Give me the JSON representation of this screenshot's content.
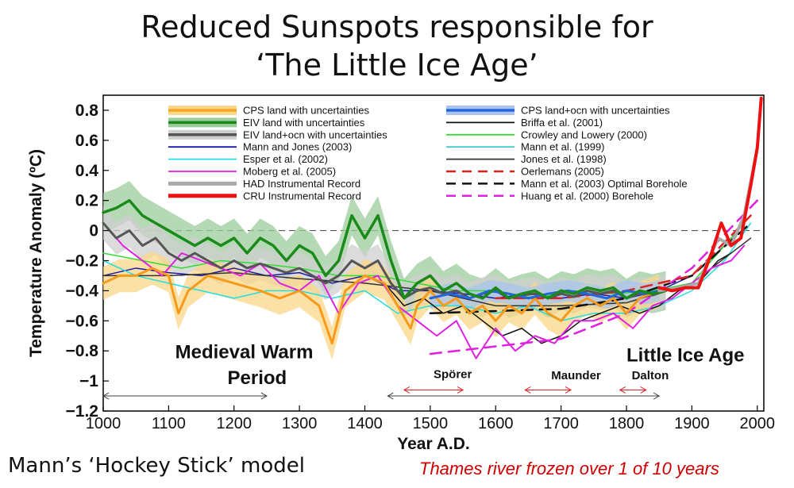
{
  "title_line1": "Reduced Sunspots responsible for",
  "title_line2": "‘The Little Ice Age’",
  "caption_left": "Mann’s ‘Hockey Stick’ model",
  "caption_right": "Thames river frozen over 1 of 10 years",
  "chart_data": {
    "type": "line",
    "xlabel": "Year A.D.",
    "ylabel": "Temperature Anomaly (ºC)",
    "xlim": [
      1000,
      2010
    ],
    "ylim": [
      -1.2,
      0.9
    ],
    "xticks": [
      1000,
      1100,
      1200,
      1300,
      1400,
      1500,
      1600,
      1700,
      1800,
      1900,
      2000
    ],
    "yticks": [
      -1.2,
      -1,
      -0.8,
      -0.6,
      -0.4,
      -0.2,
      0,
      0.2,
      0.4,
      0.6,
      0.8
    ],
    "ytick_labels": [
      "−1.2",
      "−1",
      "−0.8",
      "−0.6",
      "−0.4",
      "−0.2",
      "0",
      "0.2",
      "0.4",
      "0.6",
      "0.8"
    ],
    "grid": false,
    "zero_line": true,
    "legend_placement": "top",
    "legend": [
      {
        "label": "CPS land with uncertainties",
        "color": "#f5a623",
        "style": "band"
      },
      {
        "label": "EIV land with uncertainties",
        "color": "#1a8a1a",
        "style": "band"
      },
      {
        "label": "EIV land+ocn with uncertainties",
        "color": "#555555",
        "style": "band"
      },
      {
        "label": "Mann and Jones (2003)",
        "color": "#1a1aa8",
        "style": "line"
      },
      {
        "label": "Esper et al. (2002)",
        "color": "#22dddd",
        "style": "line"
      },
      {
        "label": "Moberg et al. (2005)",
        "color": "#e020e0",
        "style": "line"
      },
      {
        "label": "HAD Instrumental Record",
        "color": "#aaaaaa",
        "style": "thick"
      },
      {
        "label": "CRU Instrumental Record",
        "color": "#ee1111",
        "style": "thick"
      },
      {
        "label": "CPS land+ocn with uncertainties",
        "color": "#2266dd",
        "style": "band"
      },
      {
        "label": "Briffa et al. (2001)",
        "color": "#111111",
        "style": "line"
      },
      {
        "label": "Crowley and Lowery (2000)",
        "color": "#33dd33",
        "style": "line"
      },
      {
        "label": "Mann et al. (1999)",
        "color": "#44cccc",
        "style": "line"
      },
      {
        "label": "Jones et al. (1998)",
        "color": "#333333",
        "style": "line"
      },
      {
        "label": "Oerlemans (2005)",
        "color": "#dd2222",
        "style": "dashed"
      },
      {
        "label": "Mann et al. (2003) Optimal Borehole",
        "color": "#111111",
        "style": "dashed"
      },
      {
        "label": "Huang et al. (2000) Borehole",
        "color": "#e020e0",
        "style": "dashed"
      }
    ],
    "series": [
      {
        "name": "EIV land with uncertainties",
        "color": "#1a8a1a",
        "width": 3.5,
        "x": [
          1000,
          1020,
          1040,
          1060,
          1080,
          1100,
          1120,
          1140,
          1160,
          1180,
          1200,
          1220,
          1240,
          1260,
          1280,
          1300,
          1320,
          1340,
          1360,
          1380,
          1400,
          1420,
          1440,
          1460,
          1480,
          1500,
          1520,
          1540,
          1560,
          1580,
          1600,
          1620,
          1640,
          1660,
          1680,
          1700,
          1720,
          1740,
          1760,
          1780,
          1800,
          1820,
          1840,
          1860
        ],
        "y": [
          0.12,
          0.15,
          0.2,
          0.1,
          0.05,
          0.0,
          -0.05,
          -0.1,
          -0.05,
          -0.1,
          -0.05,
          -0.15,
          -0.05,
          -0.1,
          -0.2,
          -0.1,
          -0.15,
          -0.3,
          -0.2,
          0.1,
          -0.05,
          0.1,
          -0.2,
          -0.45,
          -0.35,
          -0.3,
          -0.4,
          -0.35,
          -0.42,
          -0.45,
          -0.38,
          -0.45,
          -0.42,
          -0.4,
          -0.45,
          -0.4,
          -0.42,
          -0.38,
          -0.4,
          -0.38,
          -0.45,
          -0.4,
          -0.42,
          -0.4
        ]
      },
      {
        "name": "EIV land+ocn with uncertainties",
        "color": "#555555",
        "width": 3,
        "x": [
          1000,
          1020,
          1040,
          1060,
          1080,
          1100,
          1120,
          1140,
          1160,
          1180,
          1200,
          1220,
          1240,
          1260,
          1280,
          1300,
          1320,
          1340,
          1360,
          1380,
          1400,
          1420,
          1440,
          1460,
          1480,
          1500,
          1520,
          1540,
          1560,
          1580,
          1600,
          1620,
          1640,
          1660,
          1680,
          1700,
          1720,
          1740,
          1760,
          1780,
          1800,
          1820,
          1840,
          1860
        ],
        "y": [
          0.05,
          -0.05,
          0.0,
          -0.1,
          -0.05,
          -0.15,
          -0.2,
          -0.15,
          -0.2,
          -0.25,
          -0.2,
          -0.25,
          -0.22,
          -0.25,
          -0.28,
          -0.25,
          -0.3,
          -0.35,
          -0.3,
          -0.2,
          -0.25,
          -0.2,
          -0.35,
          -0.45,
          -0.4,
          -0.38,
          -0.42,
          -0.4,
          -0.45,
          -0.42,
          -0.4,
          -0.45,
          -0.43,
          -0.42,
          -0.45,
          -0.42,
          -0.44,
          -0.4,
          -0.42,
          -0.4,
          -0.45,
          -0.42,
          -0.43,
          -0.4
        ]
      },
      {
        "name": "Mann and Jones (2003)",
        "color": "#1a1aa8",
        "width": 1.5,
        "x": [
          1000,
          1050,
          1100,
          1150,
          1200,
          1250,
          1300,
          1350,
          1400,
          1450,
          1500,
          1550,
          1600,
          1650,
          1700,
          1750,
          1800,
          1850,
          1900,
          1950,
          1980
        ],
        "y": [
          -0.3,
          -0.25,
          -0.28,
          -0.3,
          -0.25,
          -0.3,
          -0.28,
          -0.35,
          -0.3,
          -0.4,
          -0.4,
          -0.42,
          -0.45,
          -0.42,
          -0.45,
          -0.42,
          -0.45,
          -0.4,
          -0.3,
          -0.1,
          0.05
        ]
      },
      {
        "name": "Esper et al. (2002)",
        "color": "#22dddd",
        "width": 1.5,
        "x": [
          1000,
          1050,
          1100,
          1150,
          1200,
          1250,
          1300,
          1350,
          1400,
          1450,
          1500,
          1550,
          1600,
          1650,
          1700,
          1750,
          1800,
          1850,
          1900,
          1950,
          1990
        ],
        "y": [
          -0.2,
          -0.3,
          -0.35,
          -0.4,
          -0.45,
          -0.4,
          -0.4,
          -0.45,
          -0.4,
          -0.55,
          -0.5,
          -0.5,
          -0.55,
          -0.5,
          -0.6,
          -0.55,
          -0.55,
          -0.5,
          -0.4,
          -0.2,
          0.05
        ]
      },
      {
        "name": "Moberg et al. (2005)",
        "color": "#e020e0",
        "width": 2,
        "x": [
          1000,
          1030,
          1060,
          1090,
          1120,
          1150,
          1180,
          1210,
          1240,
          1270,
          1300,
          1330,
          1360,
          1390,
          1420,
          1450,
          1480,
          1510,
          1540,
          1570,
          1600,
          1630,
          1660,
          1690,
          1720,
          1750,
          1780,
          1810,
          1840,
          1870,
          1900,
          1930,
          1960,
          1980
        ],
        "y": [
          0.05,
          -0.1,
          -0.2,
          -0.3,
          -0.15,
          -0.2,
          -0.25,
          -0.3,
          -0.22,
          -0.35,
          -0.4,
          -0.3,
          -0.55,
          -0.35,
          -0.3,
          -0.5,
          -0.6,
          -0.7,
          -0.6,
          -0.85,
          -0.65,
          -0.8,
          -0.7,
          -0.75,
          -0.6,
          -0.6,
          -0.55,
          -0.65,
          -0.5,
          -0.45,
          -0.35,
          -0.25,
          -0.2,
          -0.1
        ]
      },
      {
        "name": "Briffa et al. (2001)",
        "color": "#111111",
        "width": 1.5,
        "x": [
          1400,
          1430,
          1460,
          1490,
          1520,
          1550,
          1580,
          1610,
          1640,
          1670,
          1700,
          1730,
          1760,
          1790,
          1820,
          1850,
          1880,
          1910,
          1940,
          1960
        ],
        "y": [
          -0.3,
          -0.35,
          -0.5,
          -0.45,
          -0.55,
          -0.5,
          -0.6,
          -0.7,
          -0.65,
          -0.75,
          -0.7,
          -0.6,
          -0.55,
          -0.5,
          -0.55,
          -0.5,
          -0.4,
          -0.35,
          -0.2,
          -0.15
        ]
      },
      {
        "name": "Crowley and Lowery (2000)",
        "color": "#33dd33",
        "width": 1.5,
        "x": [
          1000,
          1060,
          1120,
          1180,
          1240,
          1300,
          1360,
          1420,
          1480,
          1540,
          1600,
          1660,
          1720,
          1780,
          1840,
          1900,
          1950,
          1990
        ],
        "y": [
          -0.15,
          -0.2,
          -0.25,
          -0.2,
          -0.22,
          -0.25,
          -0.3,
          -0.3,
          -0.35,
          -0.4,
          -0.4,
          -0.45,
          -0.4,
          -0.42,
          -0.4,
          -0.35,
          -0.1,
          0.1
        ]
      },
      {
        "name": "Jones et al. (1998)",
        "color": "#333333",
        "width": 1.5,
        "x": [
          1000,
          1100,
          1200,
          1300,
          1400,
          1500,
          1600,
          1700,
          1800,
          1900,
          1990
        ],
        "y": [
          -0.3,
          -0.3,
          -0.28,
          -0.32,
          -0.35,
          -0.4,
          -0.5,
          -0.5,
          -0.48,
          -0.35,
          -0.05
        ]
      },
      {
        "name": "CPS land with uncertainties",
        "color": "#f59a1a",
        "width": 3,
        "x": [
          1000,
          1025,
          1050,
          1075,
          1100,
          1115,
          1130,
          1160,
          1200,
          1240,
          1270,
          1300,
          1330,
          1350,
          1370,
          1400,
          1430,
          1450,
          1470,
          1480,
          1500,
          1520,
          1540,
          1560,
          1580,
          1600,
          1620,
          1640,
          1660,
          1680,
          1700,
          1720,
          1740,
          1760,
          1780,
          1800,
          1820,
          1850
        ],
        "y": [
          -0.35,
          -0.3,
          -0.3,
          -0.25,
          -0.3,
          -0.55,
          -0.4,
          -0.3,
          -0.35,
          -0.4,
          -0.45,
          -0.4,
          -0.5,
          -0.75,
          -0.4,
          -0.3,
          -0.35,
          -0.5,
          -0.65,
          -0.5,
          -0.4,
          -0.5,
          -0.45,
          -0.55,
          -0.5,
          -0.6,
          -0.5,
          -0.55,
          -0.45,
          -0.55,
          -0.6,
          -0.5,
          -0.45,
          -0.5,
          -0.45,
          -0.55,
          -0.45,
          -0.4
        ]
      },
      {
        "name": "CPS land+ocn with uncertainties",
        "color": "#2266dd",
        "width": 3,
        "x": [
          1500,
          1530,
          1560,
          1590,
          1620,
          1650,
          1680,
          1710,
          1740,
          1770,
          1800,
          1830,
          1850
        ],
        "y": [
          -0.45,
          -0.42,
          -0.45,
          -0.4,
          -0.42,
          -0.45,
          -0.42,
          -0.4,
          -0.42,
          -0.45,
          -0.4,
          -0.42,
          -0.4
        ]
      },
      {
        "name": "HAD Instrumental Record",
        "color": "#aaaaaa",
        "width": 4,
        "x": [
          1850,
          1880,
          1910,
          1940,
          1960,
          1980,
          2000
        ],
        "y": [
          -0.4,
          -0.38,
          -0.35,
          -0.05,
          -0.1,
          0.1,
          0.55
        ]
      },
      {
        "name": "CRU Instrumental Record",
        "color": "#ee1111",
        "width": 4,
        "x": [
          1850,
          1870,
          1890,
          1910,
          1930,
          1945,
          1960,
          1975,
          1990,
          2000,
          2006
        ],
        "y": [
          -0.38,
          -0.4,
          -0.38,
          -0.38,
          -0.15,
          0.05,
          -0.1,
          -0.05,
          0.3,
          0.55,
          0.88
        ]
      },
      {
        "name": "Mann et al. (2003) Optimal Borehole",
        "color": "#111111",
        "width": 2.5,
        "dashed": true,
        "x": [
          1500,
          1700,
          1800,
          1900,
          1990
        ],
        "y": [
          -0.55,
          -0.52,
          -0.45,
          -0.3,
          0.05
        ]
      },
      {
        "name": "Huang et al. (2000) Borehole",
        "color": "#e020e0",
        "width": 2.5,
        "dashed": true,
        "x": [
          1500,
          1700,
          1800,
          1900,
          2000
        ],
        "y": [
          -0.82,
          -0.72,
          -0.55,
          -0.25,
          0.2
        ]
      },
      {
        "name": "Oerlemans (2005)",
        "color": "#dd2222",
        "width": 2.5,
        "dashed": true,
        "x": [
          1600,
          1700,
          1800,
          1900,
          1990
        ],
        "y": [
          -0.45,
          -0.45,
          -0.4,
          -0.3,
          0.1
        ]
      }
    ],
    "annotations": [
      {
        "text": "Medieval Warm",
        "x": 1110,
        "y": -0.85
      },
      {
        "text": "Period",
        "x": 1190,
        "y": -1.02
      },
      {
        "text": "Little Ice Age",
        "x": 1800,
        "y": -0.87
      },
      {
        "text": "Spörer",
        "x": 1505,
        "y": -0.98
      },
      {
        "text": "Maunder",
        "x": 1685,
        "y": -0.99
      },
      {
        "text": "Dalton",
        "x": 1808,
        "y": -0.99
      }
    ],
    "ranges": [
      {
        "from": 1000,
        "to": 1250,
        "y": -1.1,
        "color": "#444444"
      },
      {
        "from": 1435,
        "to": 1850,
        "y": -1.1,
        "color": "#444444"
      },
      {
        "from": 1460,
        "to": 1550,
        "y": -1.06,
        "color": "#dd2222"
      },
      {
        "from": 1645,
        "to": 1715,
        "y": -1.06,
        "color": "#dd2222"
      },
      {
        "from": 1790,
        "to": 1830,
        "y": -1.06,
        "color": "#dd2222"
      }
    ]
  }
}
